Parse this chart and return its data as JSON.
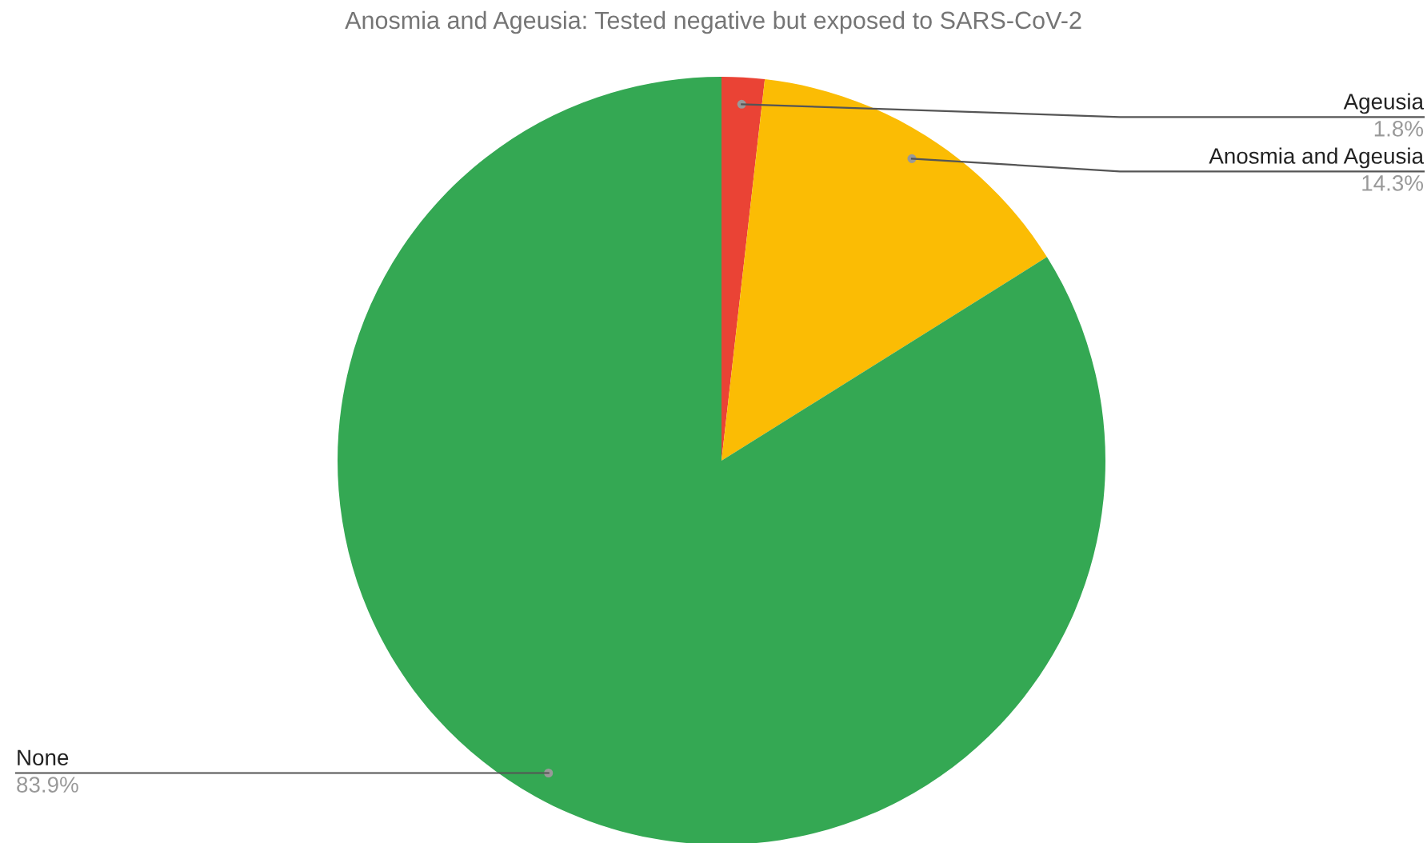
{
  "chart_data": {
    "type": "pie",
    "title": "Anosmia and Ageusia: Tested negative but exposed to SARS-CoV-2",
    "categories": [
      "Ageusia",
      "Anosmia and Ageusia",
      "None"
    ],
    "values": [
      1.8,
      14.3,
      83.9
    ],
    "value_labels": [
      "1.8%",
      "14.3%",
      "83.9%"
    ],
    "colors": [
      "#ea4335",
      "#fbbc04",
      "#34a853"
    ],
    "legend": false
  }
}
